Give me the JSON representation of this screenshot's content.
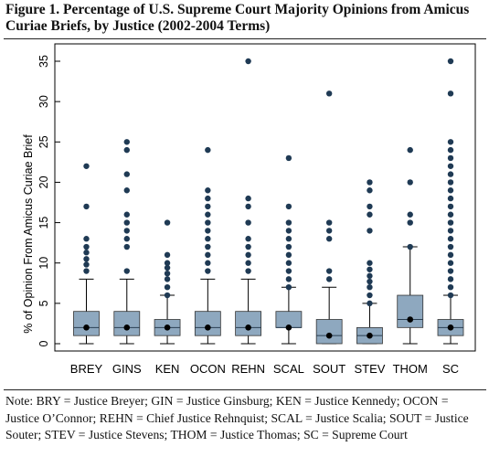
{
  "figure": {
    "title": "Figure 1. Percentage of U.S. Supreme Court Majority Opinions from Amicus Curiae Briefs, by Justice (2002-2004 Terms)",
    "note": "Note: BRY = Justice Breyer; GIN = Justice Ginsburg; KEN = Justice Kennedy; OCON = Justice O’Connor; REHN = Chief Justice Rehnquist; SCAL = Justice Scalia; SOUT = Justice Souter; STEV = Justice Stevens; THOM = Justice Thomas; SC = Supreme Court"
  },
  "colors": {
    "box_fill": "#8ea8bf",
    "outlier": "#1f3a54",
    "median_dot": "#000000",
    "line": "#000000"
  },
  "chart_data": {
    "type": "boxplot",
    "ylabel": "% of Opinion From Amicus Curiae Brief",
    "ylim": [
      0,
      35
    ],
    "yticks": [
      0,
      5,
      10,
      15,
      20,
      25,
      30,
      35
    ],
    "grid": false,
    "categories": [
      "BREY",
      "GINS",
      "KEN",
      "OCON",
      "REHN",
      "SCAL",
      "SOUT",
      "STEV",
      "THOM",
      "SC"
    ],
    "boxes": [
      {
        "name": "BREY",
        "whisker_low": 0,
        "q1": 1,
        "median": 2,
        "q3": 4,
        "whisker_high": 8,
        "outliers": [
          9,
          9.8,
          10.5,
          11.3,
          12,
          13,
          17,
          22
        ]
      },
      {
        "name": "GINS",
        "whisker_low": 0,
        "q1": 1,
        "median": 2,
        "q3": 4,
        "whisker_high": 8,
        "outliers": [
          9,
          12,
          13,
          14,
          15,
          16,
          19,
          21,
          24,
          25
        ]
      },
      {
        "name": "KEN",
        "whisker_low": 0,
        "q1": 1,
        "median": 2,
        "q3": 3,
        "whisker_high": 6,
        "outliers": [
          6,
          7,
          8,
          8.7,
          9.4,
          10,
          11,
          15
        ]
      },
      {
        "name": "OCON",
        "whisker_low": 0,
        "q1": 1,
        "median": 2,
        "q3": 4,
        "whisker_high": 8,
        "outliers": [
          9,
          10,
          11,
          12,
          13,
          14,
          15,
          16,
          17,
          18,
          19,
          24
        ]
      },
      {
        "name": "REHN",
        "whisker_low": 0,
        "q1": 1,
        "median": 2,
        "q3": 4,
        "whisker_high": 8,
        "outliers": [
          9,
          10,
          11,
          12,
          13,
          15,
          17,
          18,
          35
        ]
      },
      {
        "name": "SCAL",
        "whisker_low": 0,
        "q1": 2,
        "median": 2,
        "q3": 4,
        "whisker_high": 7,
        "outliers": [
          7,
          8,
          9,
          10,
          11,
          12,
          13,
          14,
          15,
          17,
          23
        ]
      },
      {
        "name": "SOUT",
        "whisker_low": 0,
        "q1": 0,
        "median": 1,
        "q3": 3,
        "whisker_high": 7,
        "outliers": [
          8,
          9,
          13,
          14,
          15,
          31
        ]
      },
      {
        "name": "STEV",
        "whisker_low": 0,
        "q1": 0,
        "median": 1,
        "q3": 2,
        "whisker_high": 5,
        "outliers": [
          5,
          6,
          7,
          7.7,
          8.4,
          9.2,
          10,
          14,
          16,
          17,
          19,
          20
        ]
      },
      {
        "name": "THOM",
        "whisker_low": 0,
        "q1": 2,
        "median": 3,
        "q3": 6,
        "whisker_high": 12,
        "outliers": [
          12,
          15,
          16,
          20,
          24
        ]
      },
      {
        "name": "SC",
        "whisker_low": 0,
        "q1": 1,
        "median": 2,
        "q3": 3,
        "whisker_high": 6,
        "outliers": [
          6,
          7,
          8,
          9,
          10,
          11,
          12,
          13,
          14,
          15,
          16,
          17,
          18,
          19,
          20,
          21,
          22,
          23,
          24,
          25,
          31,
          35
        ]
      }
    ]
  }
}
